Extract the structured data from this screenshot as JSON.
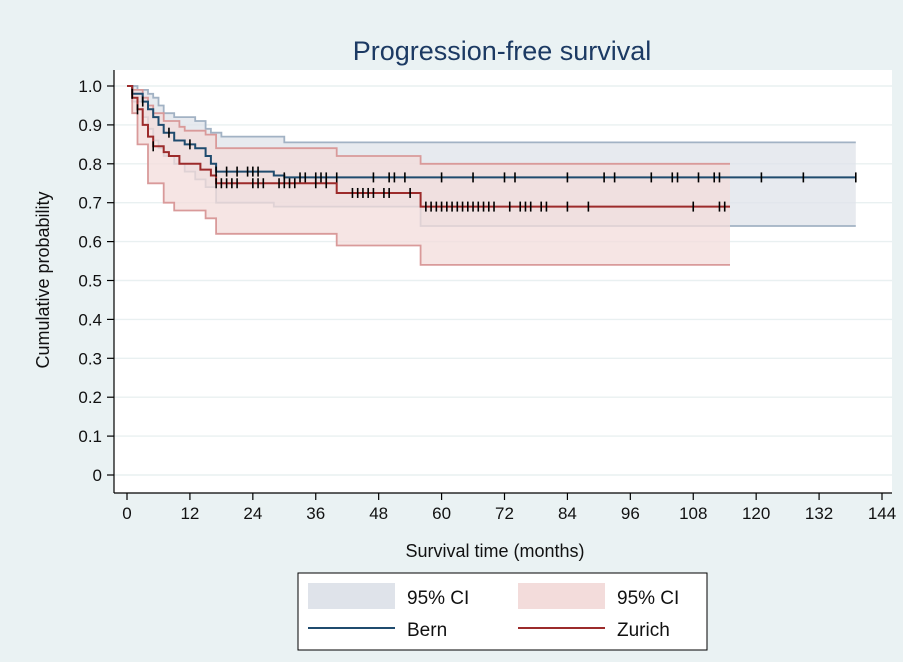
{
  "chart_data": {
    "type": "line",
    "title": "Progression-free survival",
    "xlabel": "Survival time (months)",
    "ylabel": "Cumulative probability",
    "xlim": [
      0,
      144
    ],
    "ylim": [
      0,
      1
    ],
    "xticks": [
      0,
      12,
      24,
      36,
      48,
      60,
      72,
      84,
      96,
      108,
      120,
      132,
      144
    ],
    "yticks": [
      0,
      0.1,
      0.2,
      0.3,
      0.4,
      0.5,
      0.6,
      0.7,
      0.8,
      0.9,
      1.0
    ],
    "ytick_labels": [
      "0",
      "0.1",
      "0.2",
      "0.3",
      "0.4",
      "0.5",
      "0.6",
      "0.7",
      "0.8",
      "0.9",
      "1.0"
    ],
    "grid": true,
    "legend_position": "bottom",
    "legend": [
      {
        "label": "95% CI",
        "kind": "band",
        "color": "#dfe3ea"
      },
      {
        "label": "95% CI",
        "kind": "band",
        "color": "#f3dcdb"
      },
      {
        "label": "Bern",
        "kind": "line",
        "color": "#1f4b6e"
      },
      {
        "label": "Zurich",
        "kind": "line",
        "color": "#9c2b2b"
      }
    ],
    "series": [
      {
        "name": "Bern",
        "line_color": "#1f4b6e",
        "band_fill": "#dfe3ea",
        "band_edge": "#a2b2c4",
        "steps": [
          [
            0,
            1.0
          ],
          [
            1,
            0.98
          ],
          [
            3,
            0.96
          ],
          [
            4,
            0.94
          ],
          [
            5,
            0.92
          ],
          [
            6,
            0.9
          ],
          [
            7,
            0.88
          ],
          [
            9,
            0.86
          ],
          [
            11,
            0.85
          ],
          [
            13,
            0.84
          ],
          [
            15,
            0.82
          ],
          [
            16,
            0.8
          ],
          [
            17,
            0.78
          ],
          [
            28,
            0.77
          ],
          [
            30,
            0.765
          ],
          [
            139,
            0.765
          ]
        ],
        "upper": [
          [
            0,
            1.0
          ],
          [
            2,
            0.99
          ],
          [
            4,
            0.98
          ],
          [
            5,
            0.97
          ],
          [
            6,
            0.95
          ],
          [
            7,
            0.93
          ],
          [
            9,
            0.92
          ],
          [
            13,
            0.91
          ],
          [
            15,
            0.89
          ],
          [
            16,
            0.88
          ],
          [
            18,
            0.87
          ],
          [
            30,
            0.855
          ],
          [
            139,
            0.855
          ]
        ],
        "lower": [
          [
            0,
            1.0
          ],
          [
            1,
            0.96
          ],
          [
            3,
            0.92
          ],
          [
            4,
            0.89
          ],
          [
            5,
            0.86
          ],
          [
            6,
            0.84
          ],
          [
            7,
            0.82
          ],
          [
            9,
            0.8
          ],
          [
            11,
            0.78
          ],
          [
            13,
            0.76
          ],
          [
            15,
            0.74
          ],
          [
            17,
            0.7
          ],
          [
            28,
            0.69
          ],
          [
            56,
            0.64
          ],
          [
            139,
            0.64
          ]
        ],
        "censored": [
          1,
          3,
          8,
          12,
          17,
          19,
          21,
          23,
          24,
          25,
          30,
          33,
          34,
          36,
          37,
          38,
          40,
          47,
          50,
          51,
          53,
          60,
          66,
          72,
          74,
          84,
          91,
          93,
          100,
          104,
          105,
          109,
          112,
          113,
          121,
          129,
          139
        ]
      },
      {
        "name": "Zurich",
        "line_color": "#9c2b2b",
        "band_fill": "#f3dcdb",
        "band_edge": "#d99a9a",
        "steps": [
          [
            0,
            1.0
          ],
          [
            1,
            0.97
          ],
          [
            2,
            0.94
          ],
          [
            3,
            0.9
          ],
          [
            4,
            0.87
          ],
          [
            5,
            0.845
          ],
          [
            7,
            0.83
          ],
          [
            8,
            0.82
          ],
          [
            10,
            0.8
          ],
          [
            14,
            0.785
          ],
          [
            16,
            0.77
          ],
          [
            17,
            0.75
          ],
          [
            40,
            0.725
          ],
          [
            56,
            0.69
          ],
          [
            115,
            0.69
          ]
        ],
        "upper": [
          [
            0,
            1.0
          ],
          [
            1,
            0.99
          ],
          [
            3,
            0.97
          ],
          [
            4,
            0.95
          ],
          [
            5,
            0.93
          ],
          [
            7,
            0.91
          ],
          [
            10,
            0.895
          ],
          [
            11,
            0.885
          ],
          [
            15,
            0.875
          ],
          [
            17,
            0.84
          ],
          [
            40,
            0.82
          ],
          [
            56,
            0.8
          ],
          [
            115,
            0.8
          ]
        ],
        "lower": [
          [
            0,
            1.0
          ],
          [
            1,
            0.93
          ],
          [
            2,
            0.85
          ],
          [
            4,
            0.75
          ],
          [
            7,
            0.7
          ],
          [
            9,
            0.68
          ],
          [
            15,
            0.66
          ],
          [
            17,
            0.62
          ],
          [
            40,
            0.59
          ],
          [
            56,
            0.54
          ],
          [
            115,
            0.54
          ]
        ],
        "censored": [
          2,
          5,
          17,
          18,
          19,
          20,
          21,
          24,
          25,
          26,
          29,
          30,
          31,
          32,
          36,
          38,
          43,
          44,
          45,
          46,
          47,
          49,
          50,
          54,
          57,
          58,
          59,
          60,
          61,
          62,
          63,
          64,
          65,
          66,
          67,
          68,
          69,
          70,
          73,
          75,
          76,
          77,
          79,
          80,
          84,
          88,
          108,
          113,
          114
        ]
      }
    ]
  }
}
